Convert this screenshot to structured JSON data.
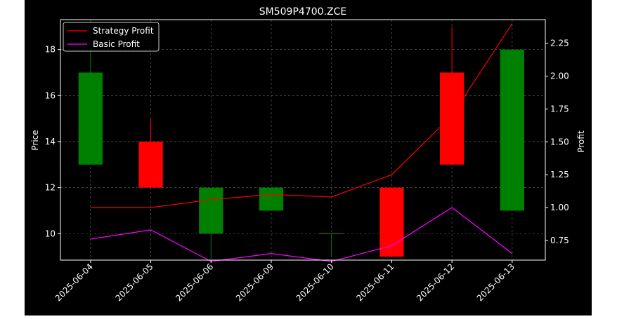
{
  "chart_data": {
    "type": "candlestick",
    "title": "SM509P4700.ZCE",
    "ylabel_left": "Price",
    "ylabel_right": "Profit",
    "categories": [
      "2025-06-04",
      "2025-06-05",
      "2025-06-06",
      "2025-06-09",
      "2025-06-10",
      "2025-06-11",
      "2025-06-12",
      "2025-06-13"
    ],
    "ylim_left": [
      8.85,
      19.3
    ],
    "ylim_right": [
      0.6,
      2.43
    ],
    "yticks_left": [
      10,
      12,
      14,
      16,
      18
    ],
    "yticks_right": [
      "0.75",
      "1.00",
      "1.25",
      "1.50",
      "1.75",
      "2.00",
      "2.25"
    ],
    "grid": true,
    "legend_position": "top-left",
    "candles": [
      {
        "open": 13,
        "high": 18,
        "low": 13,
        "close": 17
      },
      {
        "open": 14,
        "high": 15,
        "low": 12,
        "close": 12
      },
      {
        "open": 10,
        "high": 12,
        "low": 8.9,
        "close": 12
      },
      {
        "open": 11,
        "high": 12,
        "low": 11,
        "close": 12
      },
      {
        "open": 10,
        "high": 10,
        "low": 9,
        "close": 10
      },
      {
        "open": 12,
        "high": 12,
        "low": 9,
        "close": 9
      },
      {
        "open": 17,
        "high": 19,
        "low": 13,
        "close": 13
      },
      {
        "open": 11,
        "high": 18,
        "low": 11,
        "close": 18
      }
    ],
    "series": [
      {
        "name": "Strategy Profit",
        "color": "#ff0000",
        "values": [
          1.0,
          1.0,
          1.06,
          1.1,
          1.08,
          1.25,
          1.7,
          2.4
        ]
      },
      {
        "name": "Basic Profit",
        "color": "#ff00ff",
        "values": [
          0.76,
          0.83,
          0.59,
          0.65,
          0.59,
          0.71,
          1.0,
          0.65
        ]
      }
    ],
    "colors": {
      "up": "#008000",
      "down": "#ff0000",
      "background": "#000000",
      "grid": "#808080"
    }
  }
}
